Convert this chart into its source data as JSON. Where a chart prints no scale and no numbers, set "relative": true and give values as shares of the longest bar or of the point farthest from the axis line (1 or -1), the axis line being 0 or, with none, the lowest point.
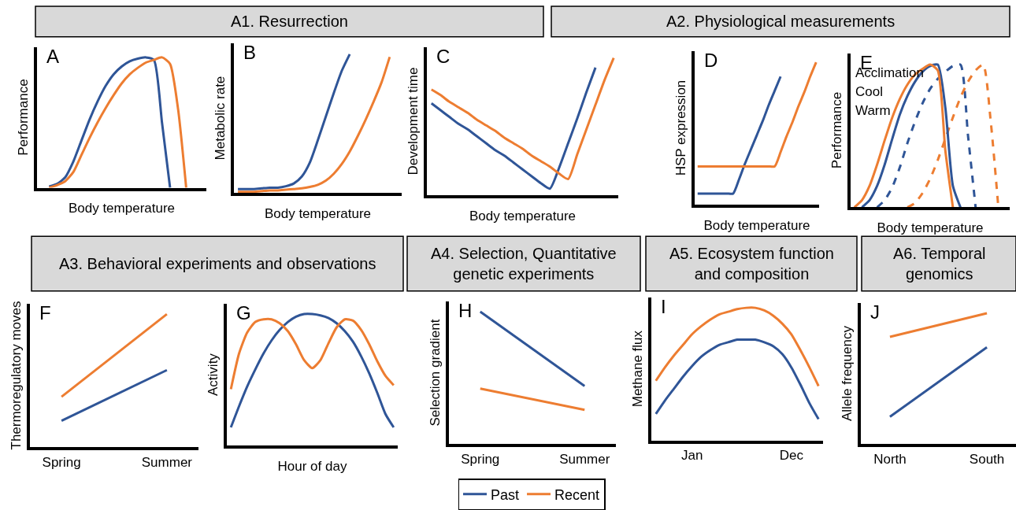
{
  "chart_data": [
    {
      "type": "line",
      "relative": true,
      "xlabel": "Body temperature",
      "ylabel": "Performance",
      "annotations": [
        "A"
      ],
      "legend": "bottom",
      "categories": [
        null,
        null,
        null,
        null,
        null,
        null,
        null,
        null,
        null,
        null,
        null,
        null,
        null,
        null,
        null,
        null,
        null,
        null,
        null,
        null,
        null
      ],
      "series": [
        {
          "name": "Past",
          "color": "#2f5597",
          "values": [
            null,
            0.01,
            0.03,
            0.08,
            0.2,
            0.36,
            0.52,
            0.66,
            0.78,
            0.87,
            0.93,
            0.97,
            0.99,
            1.0,
            0.98,
            0.5,
            0.0,
            null,
            null,
            null,
            null
          ]
        },
        {
          "name": "Recent",
          "color": "#ed7d31",
          "values": [
            null,
            0.0,
            0.02,
            0.05,
            0.12,
            0.25,
            0.38,
            0.5,
            0.61,
            0.71,
            0.8,
            0.87,
            0.92,
            0.96,
            0.98,
            1.0,
            0.95,
            0.6,
            0.0,
            null,
            null
          ]
        }
      ]
    },
    {
      "type": "line",
      "relative": true,
      "xlabel": "Body temperature",
      "ylabel": "Metabolic rate",
      "annotations": [
        "B"
      ],
      "categories": [
        null,
        null,
        null,
        null,
        null,
        null,
        null,
        null,
        null,
        null,
        null,
        null,
        null,
        null,
        null,
        null,
        null,
        null,
        null,
        null,
        null
      ],
      "series": [
        {
          "color": "#2f5597",
          "values": [
            0.03,
            0.03,
            0.03,
            0.035,
            0.04,
            0.04,
            0.05,
            0.07,
            0.12,
            0.22,
            0.38,
            0.55,
            0.72,
            0.88,
            1.0,
            null,
            null,
            null,
            null,
            null,
            null
          ]
        },
        {
          "color": "#ed7d31",
          "values": [
            0.01,
            0.01,
            0.01,
            0.015,
            0.02,
            0.02,
            0.025,
            0.03,
            0.035,
            0.045,
            0.06,
            0.09,
            0.14,
            0.21,
            0.3,
            0.41,
            0.53,
            0.66,
            0.8,
            0.98,
            null
          ]
        }
      ]
    },
    {
      "type": "line",
      "relative": true,
      "xlabel": "Body temperature",
      "ylabel": "Development time",
      "annotations": [
        "C"
      ],
      "categories": [
        null,
        null,
        null,
        null,
        null,
        null,
        null,
        null,
        null,
        null,
        null,
        null,
        null,
        null,
        null,
        null,
        null,
        null,
        null,
        null,
        null
      ],
      "series": [
        {
          "color": "#2f5597",
          "values": [
            0.67,
            0.62,
            0.57,
            0.52,
            0.48,
            0.43,
            0.38,
            0.33,
            0.29,
            0.24,
            0.19,
            0.14,
            0.09,
            0.05,
            0.2,
            0.38,
            0.56,
            0.75,
            0.93,
            null,
            null
          ]
        },
        {
          "color": "#ed7d31",
          "values": [
            0.77,
            0.73,
            0.68,
            0.64,
            0.6,
            0.55,
            0.51,
            0.47,
            0.42,
            0.38,
            0.34,
            0.29,
            0.25,
            0.21,
            0.16,
            0.12,
            0.3,
            0.48,
            0.66,
            0.84,
            1.0
          ]
        }
      ]
    },
    {
      "type": "line",
      "relative": true,
      "xlabel": "Body temperature",
      "ylabel": "HSP expression",
      "annotations": [
        "D"
      ],
      "categories": [
        null,
        null,
        null,
        null,
        null,
        null,
        null,
        null,
        null,
        null,
        null,
        null,
        null,
        null,
        null,
        null,
        null,
        null,
        null,
        null,
        null
      ],
      "series": [
        {
          "color": "#2f5597",
          "values": [
            0.08,
            0.08,
            0.08,
            0.08,
            0.08,
            0.08,
            0.08,
            0.18,
            0.29,
            0.39,
            0.49,
            0.59,
            0.7,
            0.8,
            0.9,
            null,
            null,
            null,
            null,
            null,
            null
          ]
        },
        {
          "color": "#ed7d31",
          "values": [
            0.27,
            0.27,
            0.27,
            0.27,
            0.27,
            0.27,
            0.27,
            0.27,
            0.27,
            0.27,
            0.27,
            0.27,
            0.27,
            0.27,
            0.37,
            0.48,
            0.58,
            0.69,
            0.79,
            0.9,
            1.0
          ]
        }
      ]
    },
    {
      "type": "line",
      "relative": true,
      "xlabel": "Body temperature",
      "ylabel": "Performance",
      "annotations": [
        "E",
        "Acclimation",
        "Cool",
        "Warm"
      ],
      "categories": [
        null,
        null,
        null,
        null,
        null,
        null,
        null,
        null,
        null,
        null,
        null,
        null,
        null,
        null,
        null,
        null,
        null,
        null,
        null,
        null,
        null
      ],
      "series": [
        {
          "color": "#2f5597",
          "line_style": "dashed",
          "values": [
            null,
            null,
            null,
            0.0,
            0.05,
            0.14,
            0.28,
            0.45,
            0.6,
            0.73,
            0.83,
            0.9,
            0.95,
            0.99,
            1.0,
            0.5,
            0.0,
            null,
            null,
            null,
            null
          ]
        },
        {
          "color": "#ed7d31",
          "line_style": "dashed",
          "values": [
            null,
            null,
            null,
            null,
            null,
            null,
            null,
            0.0,
            0.03,
            0.1,
            0.2,
            0.33,
            0.48,
            0.63,
            0.77,
            0.88,
            0.96,
            1.0,
            0.6,
            0.0,
            null
          ]
        },
        {
          "color": "#2f5597",
          "line_style": "solid",
          "values": [
            null,
            0.0,
            0.05,
            0.15,
            0.3,
            0.48,
            0.65,
            0.78,
            0.88,
            0.95,
            0.99,
            1.0,
            0.7,
            0.15,
            0.0,
            null,
            null,
            null,
            null,
            null,
            null
          ]
        },
        {
          "color": "#ed7d31",
          "line_style": "solid",
          "values": [
            0.0,
            0.05,
            0.15,
            0.3,
            0.47,
            0.63,
            0.76,
            0.86,
            0.93,
            0.97,
            1.0,
            0.96,
            0.4,
            0.0,
            null,
            null,
            null,
            null,
            null,
            null,
            null
          ]
        }
      ]
    },
    {
      "type": "line",
      "relative": true,
      "ylabel": "Thermoregulatory moves",
      "annotations": [
        "F"
      ],
      "categories": [
        "Spring",
        "Summer"
      ],
      "series": [
        {
          "color": "#2f5597",
          "values": [
            0.2,
            0.58
          ]
        },
        {
          "color": "#ed7d31",
          "values": [
            0.38,
            1.0
          ]
        }
      ]
    },
    {
      "type": "line",
      "relative": true,
      "xlabel": "Hour of day",
      "ylabel": "Activity",
      "annotations": [
        "G"
      ],
      "categories": [
        null,
        null,
        null,
        null,
        null,
        null,
        null,
        null,
        null,
        null,
        null,
        null,
        null,
        null,
        null,
        null,
        null,
        null,
        null,
        null,
        null
      ],
      "series": [
        {
          "color": "#2f5597",
          "values": [
            0.14,
            0.3,
            0.45,
            0.58,
            0.7,
            0.8,
            0.88,
            0.94,
            0.98,
            1.0,
            1.0,
            0.99,
            0.97,
            0.93,
            0.87,
            0.79,
            0.68,
            0.55,
            0.4,
            0.24,
            0.14
          ]
        },
        {
          "color": "#ed7d31",
          "values": [
            0.43,
            0.7,
            0.86,
            0.94,
            0.96,
            0.96,
            0.93,
            0.87,
            0.77,
            0.65,
            0.59,
            0.65,
            0.78,
            0.9,
            0.96,
            0.95,
            0.88,
            0.77,
            0.64,
            0.53,
            0.46
          ]
        }
      ]
    },
    {
      "type": "line",
      "relative": true,
      "title": "A4. Selection, Quantitative genetic experiments",
      "ylabel": "Selection gradient",
      "annotations": [
        "H"
      ],
      "categories": [
        "Spring",
        "Summer"
      ],
      "series": [
        {
          "color": "#2f5597",
          "values": [
            1.0,
            0.44
          ]
        },
        {
          "color": "#ed7d31",
          "values": [
            0.42,
            0.26
          ]
        }
      ]
    },
    {
      "type": "line",
      "relative": true,
      "title": "A5. Ecosystem function and composition",
      "ylabel": "Methane flux",
      "annotations": [
        "I"
      ],
      "categories": [
        null,
        null,
        null,
        null,
        "Jan",
        null,
        null,
        null,
        null,
        null,
        null,
        null,
        null,
        null,
        null,
        "Dec",
        null,
        null,
        null
      ],
      "series": [
        {
          "color": "#2f5597",
          "values": [
            0.2,
            0.3,
            0.39,
            0.48,
            0.56,
            0.63,
            0.68,
            0.72,
            0.74,
            0.76,
            0.76,
            0.76,
            0.74,
            0.71,
            0.65,
            0.55,
            0.42,
            0.28,
            0.16
          ]
        },
        {
          "color": "#ed7d31",
          "values": [
            0.45,
            0.55,
            0.64,
            0.72,
            0.8,
            0.86,
            0.91,
            0.95,
            0.97,
            0.99,
            1.0,
            1.0,
            0.98,
            0.94,
            0.88,
            0.8,
            0.68,
            0.55,
            0.41
          ]
        }
      ]
    },
    {
      "type": "line",
      "relative": true,
      "title": "A6. Temporal genomics",
      "ylabel": "Allele frequency",
      "annotations": [
        "J"
      ],
      "categories": [
        "North",
        "South"
      ],
      "series": [
        {
          "color": "#2f5597",
          "values": [
            0.21,
            0.74
          ]
        },
        {
          "color": "#ed7d31",
          "values": [
            0.82,
            1.0
          ]
        }
      ]
    },
    {
      "type": "other",
      "annotations": [
        "A1. Resurrection",
        "A2. Physiological measurements",
        "A3. Behavioral experiments and observations"
      ]
    }
  ]
}
